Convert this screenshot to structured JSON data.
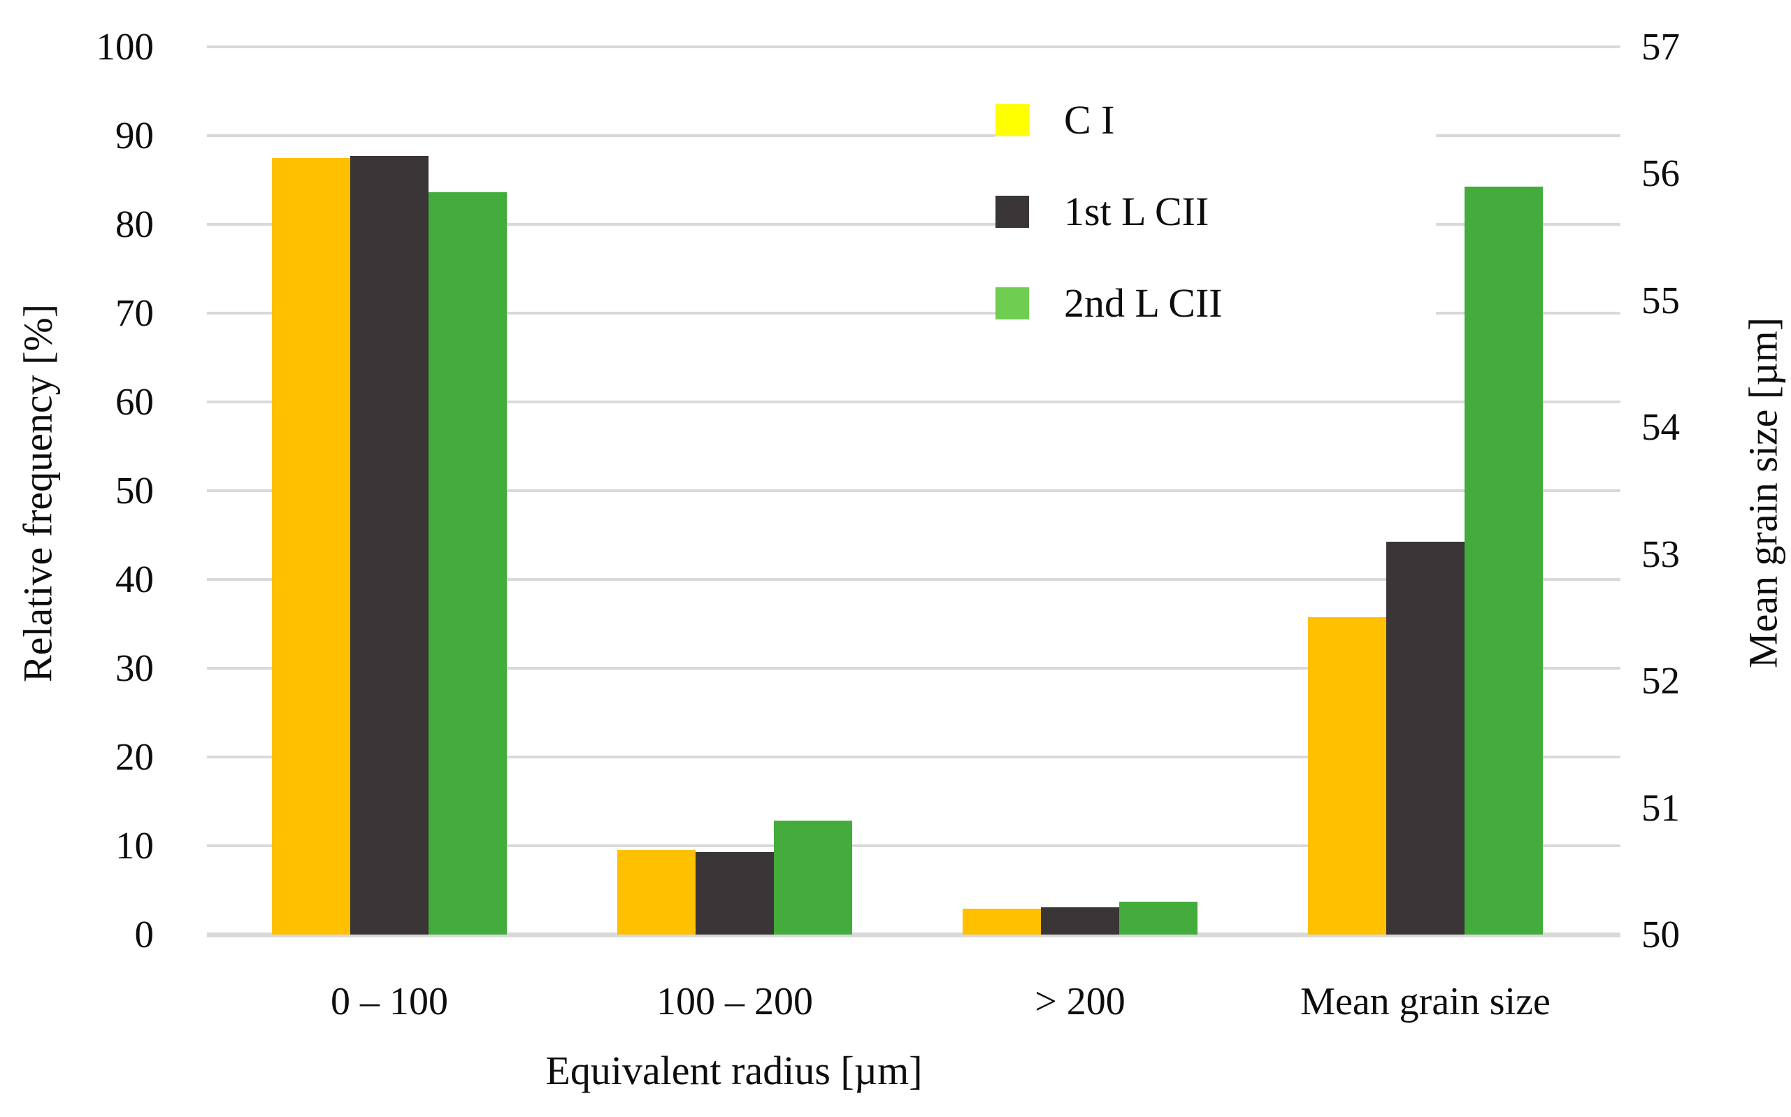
{
  "chart_data": {
    "type": "bar",
    "title": "",
    "categories": [
      "0 – 100",
      "100 – 200",
      "> 200",
      "Mean grain size"
    ],
    "xlabel": "Equivalent radius [µm]",
    "ylabel_left": "Relative frequency [%]",
    "ylabel_right": "Mean grain size [µm]",
    "y_left_ticks": [
      0,
      10,
      20,
      30,
      40,
      50,
      60,
      70,
      80,
      90,
      100
    ],
    "y_left_range": [
      0,
      100
    ],
    "y_right_ticks": [
      50,
      51,
      52,
      53,
      54,
      55,
      56,
      57
    ],
    "y_right_range": [
      50,
      57
    ],
    "grid": true,
    "legend_position": "inside-top-right",
    "series": [
      {
        "name": "C I",
        "bar_color": "#FFC000",
        "legend_color": "#FFFF00",
        "relative_frequency_pct": [
          87.5,
          9.5,
          2.9
        ],
        "mean_grain_size_um": 52.5
      },
      {
        "name": "1st L CII",
        "bar_color": "#3A3536",
        "legend_color": "#3A3536",
        "relative_frequency_pct": [
          87.7,
          9.3,
          3.1
        ],
        "mean_grain_size_um": 53.1
      },
      {
        "name": "2nd L CII",
        "bar_color": "#43AC3C",
        "legend_color": "#6FCE51",
        "relative_frequency_pct": [
          83.6,
          12.8,
          3.7
        ],
        "mean_grain_size_um": 55.9
      }
    ]
  },
  "colors": {
    "gridline": "#D9D9D9",
    "axis_line": "#D9D9D9",
    "text": "#0D0D0D",
    "background": "#FFFFFF"
  }
}
